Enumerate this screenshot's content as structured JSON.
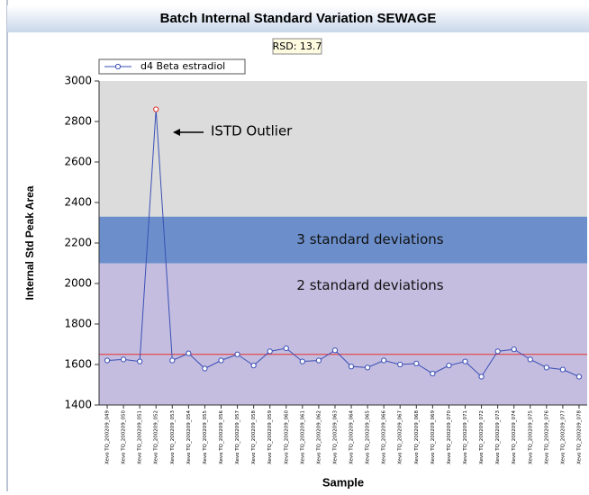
{
  "chart_data": {
    "type": "line",
    "title": "Batch Internal Standard Variation SEWAGE",
    "rsd_label": "RSD: 13.7",
    "x_label": "Sample",
    "y_label": "Internal Std Peak Area",
    "categories": [
      "Xevo TQ_200209_049",
      "Xevo TQ_200209_050",
      "Xevo TQ_200209_051",
      "Xevo TQ_200209_052",
      "Xevo TQ_200209_053",
      "Xevo TQ_200209_054",
      "Xevo TQ_200209_055",
      "Xevo TQ_200209_056",
      "Xevo TQ_200209_057",
      "Xevo TQ_200209_058",
      "Xevo TQ_200209_059",
      "Xevo TQ_200209_060",
      "Xevo TQ_200209_061",
      "Xevo TQ_200209_062",
      "Xevo TQ_200209_063",
      "Xevo TQ_200209_064",
      "Xevo TQ_200209_065",
      "Xevo TQ_200209_066",
      "Xevo TQ_200209_067",
      "Xevo TQ_200209_068",
      "Xevo TQ_200209_069",
      "Xevo TQ_200209_070",
      "Xevo TQ_200209_071",
      "Xevo TQ_200209_072",
      "Xevo TQ_200209_073",
      "Xevo TQ_200209_074",
      "Xevo TQ_200209_075",
      "Xevo TQ_200209_076",
      "Xevo TQ_200209_077",
      "Xevo TQ_200209_078"
    ],
    "series": [
      {
        "name": "d4 Beta estradiol",
        "color": "#3a4fb5",
        "values": [
          1620,
          1625,
          1615,
          2860,
          1620,
          1655,
          1580,
          1620,
          1650,
          1595,
          1665,
          1680,
          1615,
          1620,
          1670,
          1590,
          1585,
          1620,
          1600,
          1605,
          1555,
          1595,
          1615,
          1540,
          1665,
          1675,
          1625,
          1585,
          1575,
          1540
        ]
      }
    ],
    "outlier_color": "#e03030",
    "bands": [
      {
        "label": "2 standard deviations",
        "from": 1400,
        "to": 2100,
        "color": "#c4bde0"
      },
      {
        "label": "3 standard deviations",
        "from": 2100,
        "to": 2330,
        "color": "#6c8fcb"
      }
    ],
    "plot_background": "#dcdcdc",
    "reference_line": 1650,
    "reference_color": "#e83030",
    "annotation": "ISTD Outlier",
    "ylim": [
      1400,
      3000
    ],
    "yticks": [
      1400,
      1600,
      1800,
      2000,
      2200,
      2400,
      2600,
      2800,
      3000
    ],
    "grid": false
  }
}
